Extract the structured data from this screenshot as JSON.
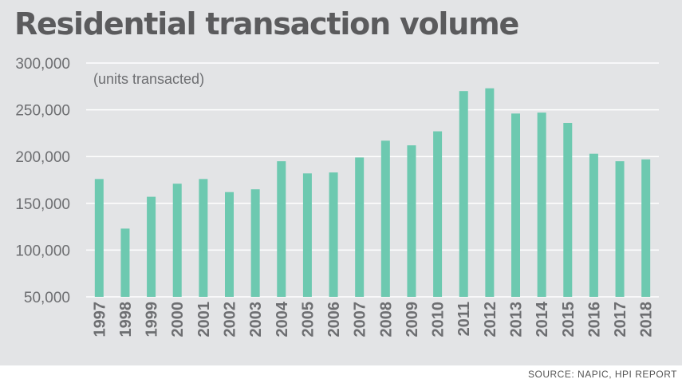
{
  "chart_data": {
    "type": "bar",
    "title": "Residential transaction volume",
    "subtitle": "(units transacted)",
    "xlabel": "",
    "ylabel": "",
    "categories": [
      "1997",
      "1998",
      "1999",
      "2000",
      "2001",
      "2002",
      "2003",
      "2004",
      "2005",
      "2006",
      "2007",
      "2008",
      "2009",
      "2010",
      "2011",
      "2012",
      "2013",
      "2014",
      "2015",
      "2016",
      "2017",
      "2018"
    ],
    "values": [
      176000,
      123000,
      157000,
      171000,
      176000,
      162000,
      165000,
      195000,
      182000,
      183000,
      199000,
      217000,
      212000,
      227000,
      270000,
      273000,
      246000,
      247000,
      236000,
      203000,
      195000,
      197000
    ],
    "ylim": [
      50000,
      300000
    ],
    "yticks": [
      50000,
      100000,
      150000,
      200000,
      250000,
      300000
    ],
    "ytick_labels": [
      "50,000",
      "100,000",
      "150,000",
      "200,000",
      "250,000",
      "300,000"
    ],
    "grid": true,
    "bar_color": "#6dc9b0",
    "background_color": "#e3e4e6",
    "gridline_color": "#ffffff",
    "axis_text_color": "#6d6e71"
  },
  "source": "SOURCE: NAPIC, HPI REPORT"
}
